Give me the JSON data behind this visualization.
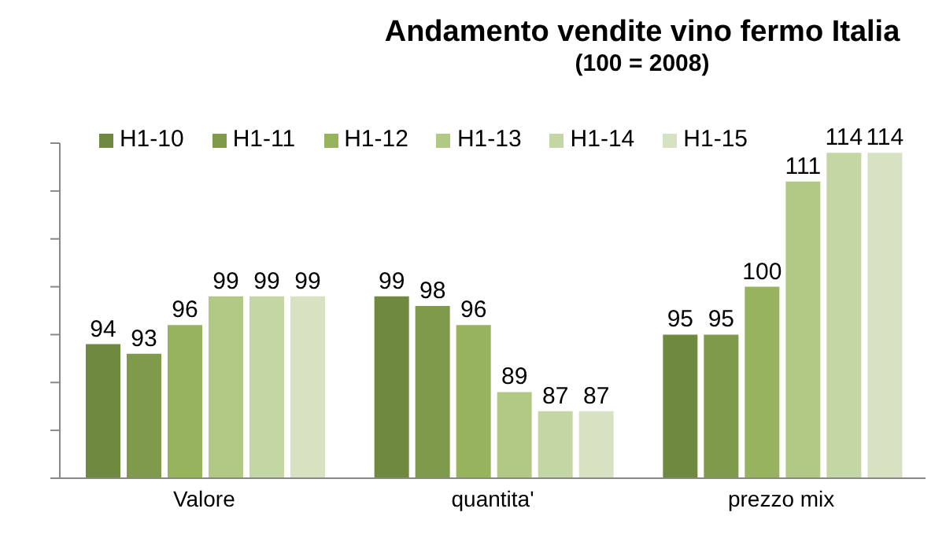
{
  "chart_data": {
    "type": "bar",
    "title": "Andamento vendite vino fermo Italia",
    "subtitle": "(100 = 2008)",
    "categories": [
      "Valore",
      "quantita'",
      "prezzo mix"
    ],
    "series": [
      {
        "name": "H1-10",
        "color": "#6f8a3e",
        "values": [
          94,
          99,
          95
        ]
      },
      {
        "name": "H1-11",
        "color": "#7f9a4a",
        "values": [
          93,
          98,
          95
        ]
      },
      {
        "name": "H1-12",
        "color": "#98b35d",
        "values": [
          96,
          96,
          100
        ]
      },
      {
        "name": "H1-13",
        "color": "#b2c985",
        "values": [
          99,
          89,
          111
        ]
      },
      {
        "name": "H1-14",
        "color": "#c5d6a5",
        "values": [
          99,
          87,
          114
        ]
      },
      {
        "name": "H1-15",
        "color": "#d7e2c3",
        "values": [
          99,
          87,
          114
        ]
      }
    ],
    "ylim": [
      80,
      115
    ],
    "tick_labels": "x",
    "grid": false,
    "legend": "top",
    "data_labels": true
  }
}
